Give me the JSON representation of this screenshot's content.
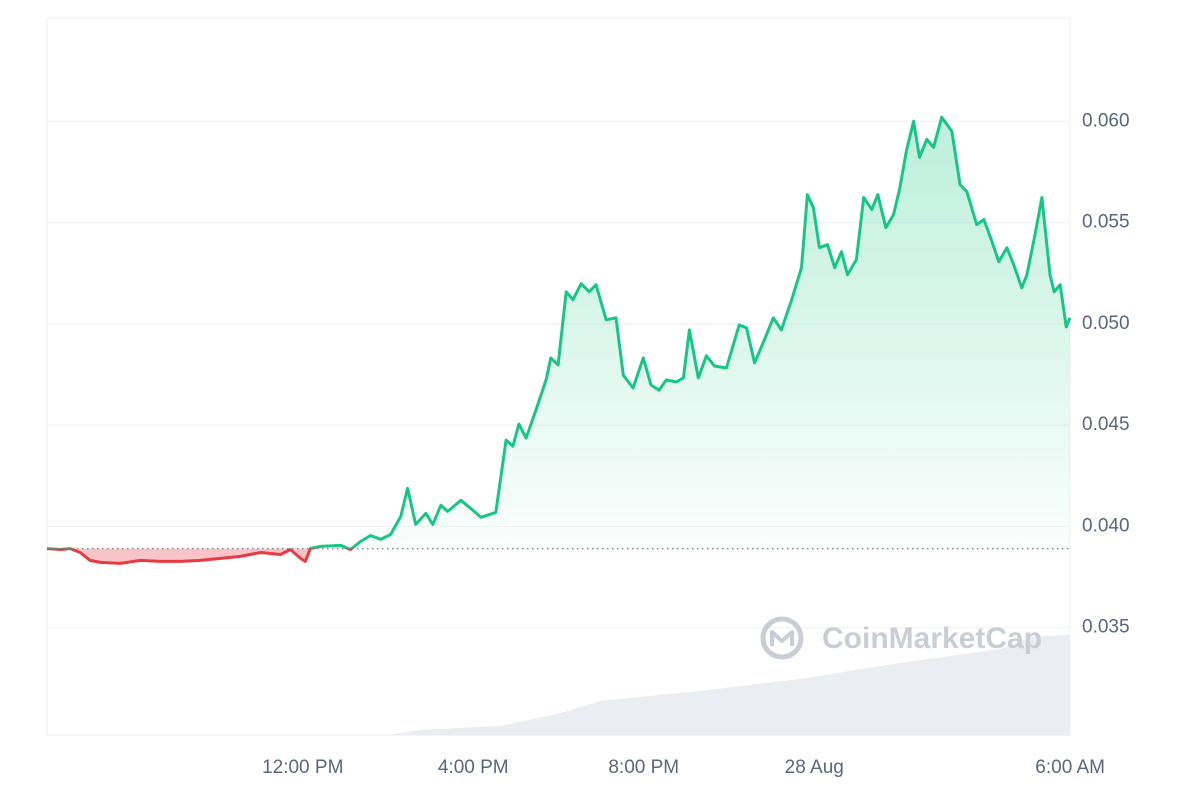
{
  "chart_data": {
    "type": "area",
    "xlim": [
      0,
      24
    ],
    "xticks": [
      {
        "value": 6,
        "label": "12:00 PM"
      },
      {
        "value": 10,
        "label": "4:00 PM"
      },
      {
        "value": 14,
        "label": "8:00 PM"
      },
      {
        "value": 18,
        "label": "28 Aug"
      },
      {
        "value": 24,
        "label": "6:00 AM"
      }
    ],
    "ylim": [
      0.0297,
      0.0651
    ],
    "yticks": [
      0.035,
      {
        "value": 0.04,
        "label": "0.040"
      },
      0.045,
      {
        "value": 0.05,
        "label": "0.050"
      },
      0.055,
      {
        "value": 0.06,
        "label": "0.060"
      }
    ],
    "grid": true,
    "baseline": 0.0389,
    "up_color": "#16c784",
    "down_color": "#ea3943",
    "watermark": "CoinMarketCap",
    "x": [
      0,
      0.31,
      0.54,
      0.78,
      1.01,
      1.25,
      1.72,
      2.19,
      2.66,
      3.13,
      3.6,
      4.07,
      4.54,
      5.01,
      5.48,
      5.71,
      5.95,
      6.06,
      6.18,
      6.42,
      6.89,
      7.12,
      7.36,
      7.59,
      7.83,
      8.06,
      8.3,
      8.46,
      8.65,
      8.89,
      9.05,
      9.24,
      9.4,
      9.71,
      9.94,
      10.18,
      10.53,
      10.77,
      10.93,
      11.07,
      11.24,
      11.47,
      11.71,
      11.82,
      11.99,
      12.18,
      12.34,
      12.53,
      12.72,
      12.88,
      13.12,
      13.35,
      13.52,
      13.75,
      13.99,
      14.17,
      14.36,
      14.53,
      14.76,
      14.93,
      15.07,
      15.28,
      15.47,
      15.66,
      15.94,
      16.24,
      16.41,
      16.6,
      16.83,
      17.04,
      17.23,
      17.47,
      17.7,
      17.84,
      17.98,
      18.12,
      18.31,
      18.48,
      18.64,
      18.78,
      18.99,
      19.16,
      19.35,
      19.49,
      19.68,
      19.86,
      20.0,
      20.17,
      20.33,
      20.47,
      20.64,
      20.8,
      20.99,
      21.23,
      21.42,
      21.58,
      21.81,
      21.98,
      22.17,
      22.33,
      22.52,
      22.68,
      22.87,
      22.99,
      23.18,
      23.34,
      23.53,
      23.63,
      23.77,
      23.91,
      24.0
    ],
    "values": [
      0.03891,
      0.03886,
      0.03891,
      0.03871,
      0.03832,
      0.03822,
      0.03817,
      0.03832,
      0.03827,
      0.03827,
      0.03832,
      0.03842,
      0.03852,
      0.03871,
      0.03861,
      0.03886,
      0.03842,
      0.03827,
      0.03891,
      0.03901,
      0.03906,
      0.03886,
      0.03926,
      0.03955,
      0.03936,
      0.0396,
      0.0405,
      0.04188,
      0.0401,
      0.04064,
      0.0401,
      0.04104,
      0.04074,
      0.04129,
      0.04089,
      0.04045,
      0.04069,
      0.04426,
      0.04396,
      0.04505,
      0.04436,
      0.04574,
      0.04723,
      0.04832,
      0.04797,
      0.05158,
      0.05119,
      0.05198,
      0.05158,
      0.05193,
      0.0502,
      0.0503,
      0.04747,
      0.04683,
      0.04832,
      0.04698,
      0.04673,
      0.04723,
      0.04713,
      0.04733,
      0.0497,
      0.04733,
      0.04842,
      0.04792,
      0.04782,
      0.04995,
      0.0498,
      0.04807,
      0.04921,
      0.0503,
      0.0497,
      0.05119,
      0.05277,
      0.05638,
      0.05574,
      0.05376,
      0.05391,
      0.05277,
      0.05356,
      0.05242,
      0.05317,
      0.05624,
      0.05564,
      0.05638,
      0.05475,
      0.05539,
      0.05663,
      0.05861,
      0.06,
      0.05822,
      0.05911,
      0.05871,
      0.0602,
      0.0595,
      0.05688,
      0.05653,
      0.0549,
      0.05515,
      0.05406,
      0.05307,
      0.05376,
      0.05292,
      0.05178,
      0.05242,
      0.0544,
      0.05624,
      0.05242,
      0.05158,
      0.05193,
      0.04985,
      0.0503
    ],
    "volume": {
      "color": "#eaedf2",
      "x": [
        0,
        8.0,
        8.77,
        10.65,
        12.06,
        13.0,
        15.35,
        17.7,
        20.05,
        22.4,
        23.1,
        24
      ],
      "values": [
        0.0297,
        0.0297,
        0.02995,
        0.03015,
        0.03079,
        0.03139,
        0.03188,
        0.03248,
        0.03327,
        0.03396,
        0.03455,
        0.03465
      ]
    }
  }
}
